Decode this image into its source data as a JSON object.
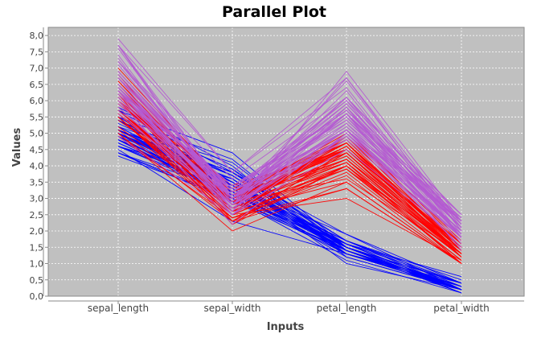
{
  "chart_data": {
    "type": "line",
    "title": "Parallel Plot",
    "xlabel": "Inputs",
    "ylabel": "Values",
    "categories": [
      "sepal_length",
      "sepal_width",
      "petal_length",
      "petal_width"
    ],
    "ylim": [
      0,
      8.25
    ],
    "yticks": [
      "0,0",
      "0,5",
      "1,0",
      "1,5",
      "2,0",
      "2,5",
      "3,0",
      "3,5",
      "4,0",
      "4,5",
      "5,0",
      "5,5",
      "6,0",
      "6,5",
      "7,0",
      "7,5",
      "8,0"
    ],
    "ytick_values": [
      0,
      0.5,
      1,
      1.5,
      2,
      2.5,
      3,
      3.5,
      4,
      4.5,
      5,
      5.5,
      6,
      6.5,
      7,
      7.5,
      8
    ],
    "grid": true,
    "background": "#c0c0c0",
    "series": [
      {
        "color": "#0000ff",
        "rows": [
          [
            5.1,
            3.5,
            1.4,
            0.2
          ],
          [
            4.9,
            3.0,
            1.4,
            0.2
          ],
          [
            4.7,
            3.2,
            1.3,
            0.2
          ],
          [
            4.6,
            3.1,
            1.5,
            0.2
          ],
          [
            5.0,
            3.6,
            1.4,
            0.2
          ],
          [
            5.4,
            3.9,
            1.7,
            0.4
          ],
          [
            4.6,
            3.4,
            1.4,
            0.3
          ],
          [
            5.0,
            3.4,
            1.5,
            0.2
          ],
          [
            4.4,
            2.9,
            1.4,
            0.2
          ],
          [
            4.9,
            3.1,
            1.5,
            0.1
          ],
          [
            5.4,
            3.7,
            1.5,
            0.2
          ],
          [
            4.8,
            3.4,
            1.6,
            0.2
          ],
          [
            4.8,
            3.0,
            1.4,
            0.1
          ],
          [
            4.3,
            3.0,
            1.1,
            0.1
          ],
          [
            5.8,
            4.0,
            1.2,
            0.2
          ],
          [
            5.7,
            4.4,
            1.5,
            0.4
          ],
          [
            5.4,
            3.9,
            1.3,
            0.4
          ],
          [
            5.1,
            3.5,
            1.4,
            0.3
          ],
          [
            5.7,
            3.8,
            1.7,
            0.3
          ],
          [
            5.1,
            3.8,
            1.5,
            0.3
          ],
          [
            5.4,
            3.4,
            1.7,
            0.2
          ],
          [
            5.1,
            3.7,
            1.5,
            0.4
          ],
          [
            4.6,
            3.6,
            1.0,
            0.2
          ],
          [
            5.1,
            3.3,
            1.7,
            0.5
          ],
          [
            4.8,
            3.4,
            1.9,
            0.2
          ],
          [
            5.0,
            3.0,
            1.6,
            0.2
          ],
          [
            5.0,
            3.4,
            1.6,
            0.4
          ],
          [
            5.2,
            3.5,
            1.5,
            0.2
          ],
          [
            5.2,
            3.4,
            1.4,
            0.2
          ],
          [
            4.7,
            3.2,
            1.6,
            0.2
          ],
          [
            4.8,
            3.1,
            1.6,
            0.2
          ],
          [
            5.4,
            3.4,
            1.5,
            0.4
          ],
          [
            5.2,
            4.1,
            1.5,
            0.1
          ],
          [
            5.5,
            4.2,
            1.4,
            0.2
          ],
          [
            4.9,
            3.1,
            1.5,
            0.2
          ],
          [
            5.0,
            3.2,
            1.2,
            0.2
          ],
          [
            5.5,
            3.5,
            1.3,
            0.2
          ],
          [
            4.9,
            3.6,
            1.4,
            0.1
          ],
          [
            4.4,
            3.0,
            1.3,
            0.2
          ],
          [
            5.1,
            3.4,
            1.5,
            0.2
          ],
          [
            5.0,
            3.5,
            1.3,
            0.3
          ],
          [
            4.5,
            2.3,
            1.3,
            0.3
          ],
          [
            4.4,
            3.2,
            1.3,
            0.2
          ],
          [
            5.0,
            3.5,
            1.6,
            0.6
          ],
          [
            5.1,
            3.8,
            1.9,
            0.4
          ],
          [
            4.8,
            3.0,
            1.4,
            0.3
          ],
          [
            5.1,
            3.8,
            1.6,
            0.2
          ],
          [
            4.6,
            3.2,
            1.4,
            0.2
          ],
          [
            5.3,
            3.7,
            1.5,
            0.2
          ],
          [
            5.0,
            3.3,
            1.4,
            0.2
          ]
        ]
      },
      {
        "color": "#ff0000",
        "rows": [
          [
            7.0,
            3.2,
            4.7,
            1.4
          ],
          [
            6.4,
            3.2,
            4.5,
            1.5
          ],
          [
            6.9,
            3.1,
            4.9,
            1.5
          ],
          [
            5.5,
            2.3,
            4.0,
            1.3
          ],
          [
            6.5,
            2.8,
            4.6,
            1.5
          ],
          [
            5.7,
            2.8,
            4.5,
            1.3
          ],
          [
            6.3,
            3.3,
            4.7,
            1.6
          ],
          [
            4.9,
            2.4,
            3.3,
            1.0
          ],
          [
            6.6,
            2.9,
            4.6,
            1.3
          ],
          [
            5.2,
            2.7,
            3.9,
            1.4
          ],
          [
            5.0,
            2.0,
            3.5,
            1.0
          ],
          [
            5.9,
            3.0,
            4.2,
            1.5
          ],
          [
            6.0,
            2.2,
            4.0,
            1.0
          ],
          [
            6.1,
            2.9,
            4.7,
            1.4
          ],
          [
            5.6,
            2.9,
            3.6,
            1.3
          ],
          [
            6.7,
            3.1,
            4.4,
            1.4
          ],
          [
            5.6,
            3.0,
            4.5,
            1.5
          ],
          [
            5.8,
            2.7,
            4.1,
            1.0
          ],
          [
            6.2,
            2.2,
            4.5,
            1.5
          ],
          [
            5.6,
            2.5,
            3.9,
            1.1
          ],
          [
            5.9,
            3.2,
            4.8,
            1.8
          ],
          [
            6.1,
            2.8,
            4.0,
            1.3
          ],
          [
            6.3,
            2.5,
            4.9,
            1.5
          ],
          [
            6.1,
            2.8,
            4.7,
            1.2
          ],
          [
            6.4,
            2.9,
            4.3,
            1.3
          ],
          [
            6.6,
            3.0,
            4.4,
            1.4
          ],
          [
            6.8,
            2.8,
            4.8,
            1.4
          ],
          [
            6.7,
            3.0,
            5.0,
            1.7
          ],
          [
            6.0,
            2.9,
            4.5,
            1.5
          ],
          [
            5.7,
            2.6,
            3.5,
            1.0
          ],
          [
            5.5,
            2.4,
            3.8,
            1.1
          ],
          [
            5.5,
            2.4,
            3.7,
            1.0
          ],
          [
            5.8,
            2.7,
            3.9,
            1.2
          ],
          [
            6.0,
            2.7,
            5.1,
            1.6
          ],
          [
            5.4,
            3.0,
            4.5,
            1.5
          ],
          [
            6.0,
            3.4,
            4.5,
            1.6
          ],
          [
            6.7,
            3.1,
            4.7,
            1.5
          ],
          [
            6.3,
            2.3,
            4.4,
            1.3
          ],
          [
            5.6,
            3.0,
            4.1,
            1.3
          ],
          [
            5.5,
            2.5,
            4.0,
            1.3
          ],
          [
            5.5,
            2.6,
            4.4,
            1.2
          ],
          [
            6.1,
            3.0,
            4.6,
            1.4
          ],
          [
            5.8,
            2.6,
            4.0,
            1.2
          ],
          [
            5.0,
            2.3,
            3.3,
            1.0
          ],
          [
            5.6,
            2.7,
            4.2,
            1.3
          ],
          [
            5.7,
            3.0,
            4.2,
            1.2
          ],
          [
            5.7,
            2.9,
            4.2,
            1.3
          ],
          [
            6.2,
            2.9,
            4.3,
            1.3
          ],
          [
            5.1,
            2.5,
            3.0,
            1.1
          ],
          [
            5.7,
            2.8,
            4.1,
            1.3
          ]
        ]
      },
      {
        "color": "#b45ad2",
        "rows": [
          [
            6.3,
            3.3,
            6.0,
            2.5
          ],
          [
            5.8,
            2.7,
            5.1,
            1.9
          ],
          [
            7.1,
            3.0,
            5.9,
            2.1
          ],
          [
            6.3,
            2.9,
            5.6,
            1.8
          ],
          [
            6.5,
            3.0,
            5.8,
            2.2
          ],
          [
            7.6,
            3.0,
            6.6,
            2.1
          ],
          [
            4.9,
            2.5,
            4.5,
            1.7
          ],
          [
            7.3,
            2.9,
            6.3,
            1.8
          ],
          [
            6.7,
            2.5,
            5.8,
            1.8
          ],
          [
            7.2,
            3.6,
            6.1,
            2.5
          ],
          [
            6.5,
            3.2,
            5.1,
            2.0
          ],
          [
            6.4,
            2.7,
            5.3,
            1.9
          ],
          [
            6.8,
            3.0,
            5.5,
            2.1
          ],
          [
            5.7,
            2.5,
            5.0,
            2.0
          ],
          [
            5.8,
            2.8,
            5.1,
            2.4
          ],
          [
            6.4,
            3.2,
            5.3,
            2.3
          ],
          [
            6.5,
            3.0,
            5.5,
            1.8
          ],
          [
            7.7,
            3.8,
            6.7,
            2.2
          ],
          [
            7.7,
            2.6,
            6.9,
            2.3
          ],
          [
            6.0,
            2.2,
            5.0,
            1.5
          ],
          [
            6.9,
            3.2,
            5.7,
            2.3
          ],
          [
            5.6,
            2.8,
            4.9,
            2.0
          ],
          [
            7.7,
            2.8,
            6.7,
            2.0
          ],
          [
            6.3,
            2.7,
            4.9,
            1.8
          ],
          [
            6.7,
            3.3,
            5.7,
            2.1
          ],
          [
            7.2,
            3.2,
            6.0,
            1.8
          ],
          [
            6.2,
            2.8,
            4.8,
            1.8
          ],
          [
            6.1,
            3.0,
            4.9,
            1.8
          ],
          [
            6.4,
            2.8,
            5.6,
            2.1
          ],
          [
            7.2,
            3.0,
            5.8,
            1.6
          ],
          [
            7.4,
            2.8,
            6.1,
            1.9
          ],
          [
            7.9,
            3.8,
            6.4,
            2.0
          ],
          [
            6.4,
            2.8,
            5.6,
            2.2
          ],
          [
            6.3,
            2.8,
            5.1,
            1.5
          ],
          [
            6.1,
            2.6,
            5.6,
            1.4
          ],
          [
            7.7,
            3.0,
            6.1,
            2.3
          ],
          [
            6.3,
            3.4,
            5.6,
            2.4
          ],
          [
            6.4,
            3.1,
            5.5,
            1.8
          ],
          [
            6.0,
            3.0,
            4.8,
            1.8
          ],
          [
            6.9,
            3.1,
            5.4,
            2.1
          ],
          [
            6.7,
            3.1,
            5.6,
            2.4
          ],
          [
            6.9,
            3.1,
            5.1,
            2.3
          ],
          [
            5.8,
            2.7,
            5.1,
            1.9
          ],
          [
            6.8,
            3.2,
            5.9,
            2.3
          ],
          [
            6.7,
            3.3,
            5.7,
            2.5
          ],
          [
            6.7,
            3.0,
            5.2,
            2.3
          ],
          [
            6.3,
            2.5,
            5.0,
            1.9
          ],
          [
            6.5,
            3.0,
            5.2,
            2.0
          ],
          [
            6.2,
            3.4,
            5.4,
            2.3
          ],
          [
            5.9,
            3.0,
            5.1,
            1.8
          ]
        ]
      }
    ]
  }
}
